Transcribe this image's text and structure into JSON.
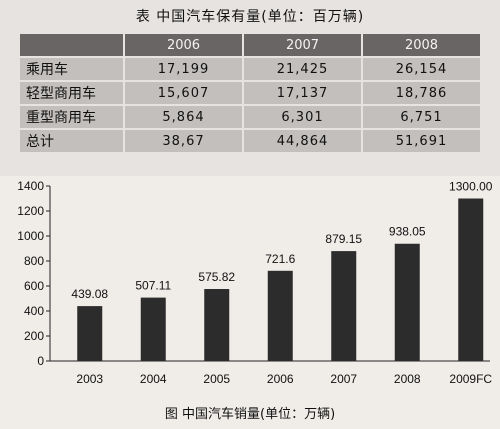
{
  "table": {
    "title": "表  中国汽车保有量(单位：百万辆)",
    "header": [
      "",
      "2006",
      "2007",
      "2008"
    ],
    "rows": [
      {
        "label": "乘用车",
        "values": [
          "17,199",
          "21,425",
          "26,154"
        ]
      },
      {
        "label": "轻型商用车",
        "values": [
          "15,607",
          "17,137",
          "18,786"
        ]
      },
      {
        "label": "重型商用车",
        "values": [
          "5,864",
          "6,301",
          "6,751"
        ]
      },
      {
        "label": "总计",
        "values": [
          "38,67",
          "44,864",
          "51,691"
        ]
      }
    ]
  },
  "chart_data": {
    "type": "bar",
    "title": "图  中国汽车销量(单位：万辆)",
    "categories": [
      "2003",
      "2004",
      "2005",
      "2006",
      "2007",
      "2008",
      "2009FC"
    ],
    "values": [
      439.08,
      507.11,
      575.82,
      721.6,
      879.15,
      938.05,
      1300.0
    ],
    "value_labels": [
      "439.08",
      "507.11",
      "575.82",
      "721.6",
      "879.15",
      "938.05",
      "1300.00"
    ],
    "yticks": [
      "0",
      "200",
      "400",
      "600",
      "800",
      "1000",
      "1200",
      "1400"
    ],
    "ylim": [
      0,
      1400
    ],
    "grid": false,
    "legend": "none",
    "bar_color": "#2c2c2c"
  }
}
